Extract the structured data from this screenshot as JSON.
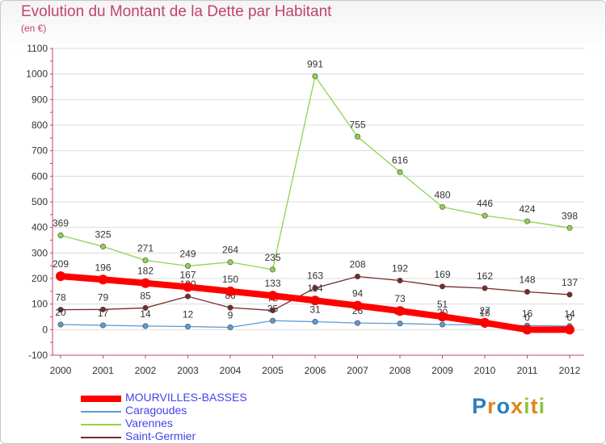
{
  "chart_data": {
    "type": "line",
    "title": "Evolution du Montant de la Dette par Habitant",
    "unit": "(en €)",
    "categories": [
      "2000",
      "2001",
      "2002",
      "2003",
      "2004",
      "2005",
      "2006",
      "2007",
      "2008",
      "2009",
      "2010",
      "2011",
      "2012"
    ],
    "ylim": [
      -100,
      1100
    ],
    "yticks": [
      -100,
      0,
      100,
      200,
      300,
      400,
      500,
      600,
      700,
      800,
      900,
      1000,
      1100
    ],
    "series": [
      {
        "name": "Saint-Germier",
        "color": "#7a2a2a",
        "values": [
          78,
          79,
          85,
          130,
          86,
          75,
          163,
          208,
          192,
          169,
          162,
          148,
          137
        ],
        "labels": [
          "78",
          "79",
          "85",
          "130",
          "86",
          "75",
          "163",
          "208",
          "192",
          "169",
          "162",
          "148",
          "137"
        ],
        "thick": false
      },
      {
        "name": "Varennes",
        "color": "#8dd44c",
        "values": [
          369,
          325,
          271,
          249,
          264,
          235,
          991,
          755,
          616,
          480,
          446,
          424,
          398
        ],
        "labels": [
          "369",
          "325",
          "271",
          "249",
          "264",
          "235",
          "991",
          "755",
          "616",
          "480",
          "446",
          "424",
          "398"
        ],
        "thick": false
      },
      {
        "name": "Caragoudes",
        "color": "#5b9bd5",
        "values": [
          20,
          17,
          14,
          12,
          9,
          35,
          31,
          26,
          24,
          20,
          18,
          16,
          14
        ],
        "labels": [
          "20",
          "17",
          "14",
          "12",
          "9",
          "35",
          "31",
          "26",
          "24",
          "20",
          "18",
          "16",
          "14"
        ],
        "thick": false
      },
      {
        "name": "MOURVILLES-BASSES",
        "color": "#ff0000",
        "values": [
          209,
          196,
          182,
          167,
          150,
          133,
          114,
          94,
          73,
          51,
          27,
          0,
          0
        ],
        "labels": [
          "209",
          "196",
          "182",
          "167",
          "150",
          "133",
          "114",
          "94",
          "73",
          "51",
          "27",
          "0",
          "0"
        ],
        "thick": true
      }
    ],
    "legend_order": [
      "MOURVILLES-BASSES",
      "Caragoudes",
      "Varennes",
      "Saint-Germier"
    ]
  },
  "logo": {
    "letters": [
      "P",
      "r",
      "o",
      "x",
      "i",
      "t",
      "i"
    ],
    "colors": [
      "#2a7fc0",
      "#e0841e",
      "#2a7fc0",
      "#e0841e",
      "#8cc63f",
      "#e0841e",
      "#8cc63f"
    ]
  }
}
